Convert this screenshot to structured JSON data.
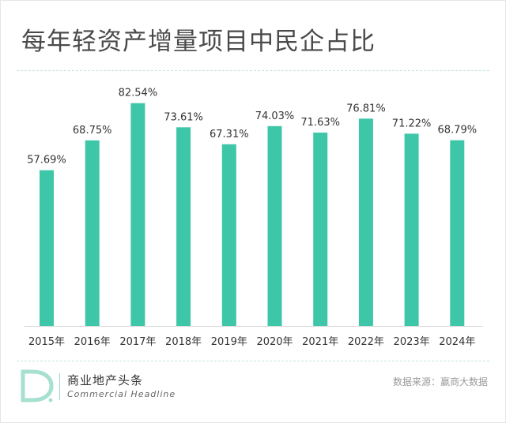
{
  "title": "每年轻资产增量项目中民企占比",
  "source": "数据来源：赢商大数据",
  "logo": {
    "cn": "商业地产头条",
    "en": "Commercial Headline"
  },
  "colors": {
    "bar": "#3ec6a8",
    "divider": "#bfe6da"
  },
  "chart_data": {
    "type": "bar",
    "categories": [
      "2015年",
      "2016年",
      "2017年",
      "2018年",
      "2019年",
      "2020年",
      "2021年",
      "2022年",
      "2023年",
      "2024年"
    ],
    "values": [
      57.69,
      68.75,
      82.54,
      73.61,
      67.31,
      74.03,
      71.63,
      76.81,
      71.22,
      68.79
    ],
    "labels": [
      "57.69%",
      "68.75%",
      "82.54%",
      "73.61%",
      "67.31%",
      "74.03%",
      "71.63%",
      "76.81%",
      "71.22%",
      "68.79%"
    ],
    "title": "每年轻资产增量项目中民企占比",
    "xlabel": "",
    "ylabel": "",
    "ylim": [
      0,
      90
    ],
    "grid": false
  }
}
